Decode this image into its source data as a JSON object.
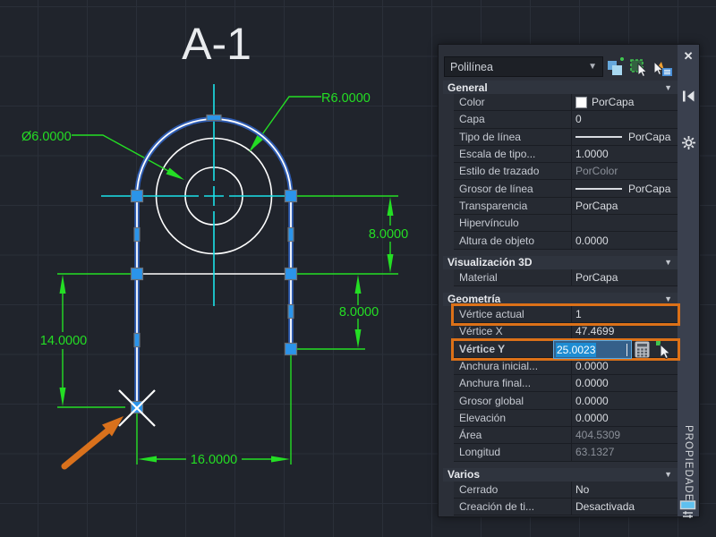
{
  "canvas": {
    "title": "A-1",
    "labels": {
      "radius": "R6.0000",
      "diameter": "Ø6.0000",
      "dim_right_upper": "8.0000",
      "dim_right_lower": "8.0000",
      "dim_left": "14.0000",
      "dim_bottom": "16.0000"
    },
    "colors": {
      "dimension_green": "#24DE24",
      "centerline_cyan": "#1BE2E9",
      "selection_blue": "#2E5CB2",
      "grip_blue": "#2B94EA",
      "marker_arrow_orange": "#D9711C",
      "geometry_white": "#FFFFFF"
    }
  },
  "palette": {
    "type_selector": {
      "value": "Polilínea"
    },
    "toolbar": {
      "pickadd_label": "pickadd-toggle",
      "select_objects_label": "select-objects",
      "quick_select_label": "quick-select"
    },
    "titlebar": {
      "title": "PROPIEDADES"
    },
    "highlight_color": "#DC7118",
    "sections": [
      {
        "title": "General",
        "rows": [
          {
            "label": "Color",
            "value": "PorCapa",
            "type": "swatch"
          },
          {
            "label": "Capa",
            "value": "0"
          },
          {
            "label": "Tipo de línea",
            "value": "PorCapa",
            "type": "linetype"
          },
          {
            "label": "Escala de tipo...",
            "value": "1.0000"
          },
          {
            "label": "Estilo de trazado",
            "value": "PorColor",
            "type": "readonly"
          },
          {
            "label": "Grosor de línea",
            "value": "PorCapa",
            "type": "linetype"
          },
          {
            "label": "Transparencia",
            "value": "PorCapa"
          },
          {
            "label": "Hipervínculo",
            "value": ""
          },
          {
            "label": "Altura de objeto",
            "value": "0.0000"
          }
        ]
      },
      {
        "title": "Visualización 3D",
        "rows": [
          {
            "label": "Material",
            "value": "PorCapa"
          }
        ]
      },
      {
        "title": "Geometría",
        "rows": [
          {
            "label": "Vértice actual",
            "value": "1",
            "highlight": true
          },
          {
            "label": "Vértice X",
            "value": "47.4699"
          },
          {
            "label": "Vértice Y",
            "value": "25.0023",
            "type": "edit",
            "highlight": true
          },
          {
            "label": "Anchura inicial...",
            "value": "0.0000"
          },
          {
            "label": "Anchura final...",
            "value": "0.0000"
          },
          {
            "label": "Grosor global",
            "value": "0.0000"
          },
          {
            "label": "Elevación",
            "value": "0.0000"
          },
          {
            "label": "Área",
            "value": "404.5309",
            "type": "readonly"
          },
          {
            "label": "Longitud",
            "value": "63.1327",
            "type": "readonly"
          }
        ]
      },
      {
        "title": "Varios",
        "rows": [
          {
            "label": "Cerrado",
            "value": "No"
          },
          {
            "label": "Creación de ti...",
            "value": "Desactivada"
          }
        ]
      }
    ]
  }
}
